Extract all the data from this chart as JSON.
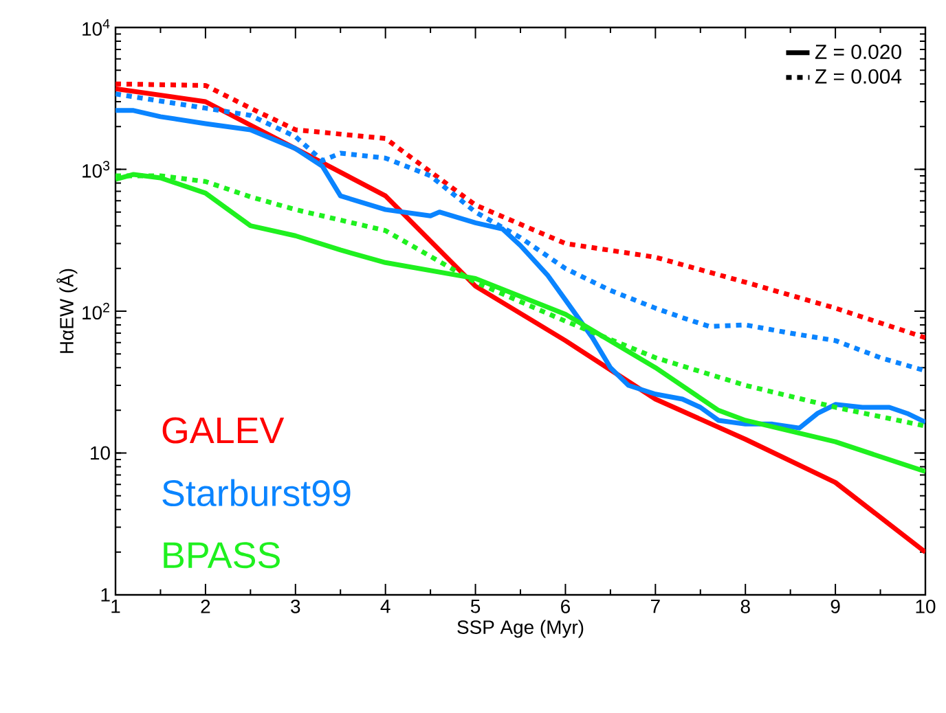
{
  "chart_data": {
    "type": "line",
    "xlabel": "SSP Age (Myr)",
    "ylabel": "HαEW (Å)",
    "log": "y",
    "xlim": [
      1,
      10
    ],
    "ylim": [
      1,
      10000
    ],
    "xticks": [
      1,
      2,
      3,
      4,
      5,
      6,
      7,
      8,
      9,
      10
    ],
    "yticks": [
      1,
      10,
      {
        "value": 100,
        "label": "10$^{2}$"
      },
      {
        "value": 1000,
        "label": "10$^{3}$"
      },
      {
        "value": 10000,
        "label": "10$^{4}$"
      }
    ],
    "legend": "bottom left",
    "grid": false,
    "annotations": [
      "Z = 0.020",
      "Z = 0.004"
    ],
    "series": [
      {
        "name": "GALEV",
        "color": "#ff0000",
        "line_style": "solid",
        "x": [
          1,
          2,
          3,
          4,
          5,
          6,
          7,
          8,
          9,
          10
        ],
        "values": [
          3700,
          3000,
          1400,
          650,
          150,
          62,
          24,
          12.5,
          6.2,
          2.0
        ]
      },
      {
        "name": "Starburst99",
        "color": "#0a84ff",
        "line_style": "solid",
        "x": [
          1,
          1.2,
          1.5,
          2,
          2.5,
          3,
          3.3,
          3.5,
          4,
          4.5,
          4.6,
          5,
          5.3,
          5.5,
          5.8,
          6,
          6.3,
          6.5,
          6.7,
          7,
          7.3,
          7.5,
          7.7,
          8,
          8.3,
          8.6,
          8.8,
          9,
          9.3,
          9.6,
          9.8,
          10
        ],
        "values": [
          2600,
          2600,
          2350,
          2100,
          1900,
          1400,
          1050,
          650,
          520,
          470,
          500,
          420,
          380,
          290,
          180,
          120,
          65,
          40,
          30,
          26,
          24,
          21,
          17,
          16,
          16,
          15,
          19,
          22,
          21,
          21,
          19,
          16.5
        ]
      },
      {
        "name": "BPASS",
        "color": "#1ff01f",
        "line_style": "solid",
        "x": [
          1,
          1.2,
          1.5,
          2,
          2.5,
          3,
          3.5,
          4,
          5,
          6,
          7,
          7.7,
          8,
          9,
          10
        ],
        "values": [
          850,
          920,
          870,
          680,
          400,
          340,
          270,
          220,
          170,
          95,
          40,
          20,
          17,
          12,
          7.4
        ]
      },
      {
        "color": "#ff0000",
        "line_style": "dotted",
        "x": [
          1,
          2,
          2.5,
          3,
          4,
          5,
          6,
          7,
          8,
          9,
          10
        ],
        "values": [
          4000,
          3900,
          2700,
          1900,
          1650,
          560,
          300,
          240,
          160,
          105,
          65
        ]
      },
      {
        "color": "#0a84ff",
        "line_style": "dotted",
        "x": [
          1,
          2,
          2.5,
          3,
          3.3,
          3.5,
          4,
          4.5,
          5,
          5.5,
          6,
          6.5,
          7,
          7.3,
          7.6,
          8,
          8.5,
          9,
          9.5,
          10
        ],
        "values": [
          3400,
          2700,
          2400,
          1700,
          1150,
          1300,
          1200,
          900,
          500,
          330,
          200,
          140,
          105,
          90,
          78,
          80,
          70,
          62,
          47,
          38
        ]
      },
      {
        "color": "#1ff01f",
        "line_style": "dotted",
        "x": [
          1,
          1.5,
          2,
          2.5,
          3,
          4,
          5,
          6,
          7,
          8,
          9,
          10
        ],
        "values": [
          900,
          900,
          820,
          640,
          520,
          370,
          160,
          85,
          47,
          30,
          21,
          15.5
        ]
      }
    ]
  }
}
